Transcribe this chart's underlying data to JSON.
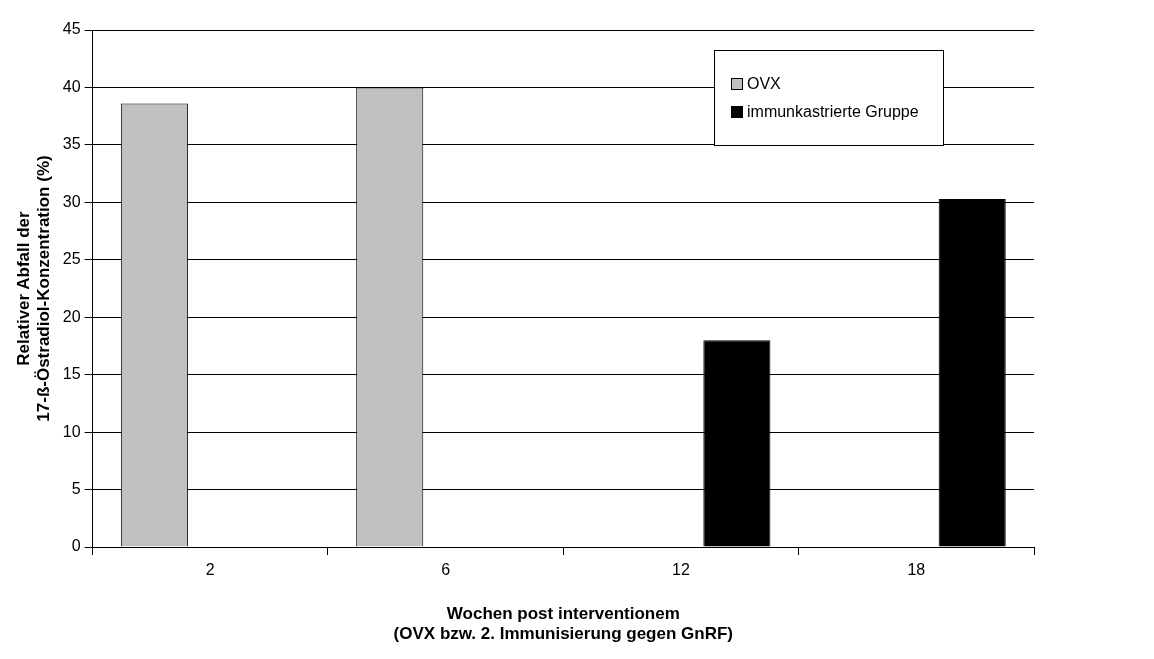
{
  "chart_data": {
    "type": "bar",
    "xlabel": "Wochen post interventionem\n(OVX bzw. 2. Immunisierung gegen GnRF)",
    "ylabel": "Relativer Abfall der\n17-ß-Östradiol-Konzentration (%)",
    "categories": [
      "2",
      "6",
      "12",
      "18"
    ],
    "series": [
      {
        "name": "OVX",
        "color": "#c0c0c0",
        "values": [
          38.6,
          40,
          null,
          null
        ]
      },
      {
        "name": "immunkastrierte Gruppe",
        "color": "#000000",
        "values": [
          null,
          null,
          18,
          30.3
        ]
      }
    ],
    "ylim": [
      0,
      45
    ],
    "yticks": [
      0,
      5,
      10,
      15,
      20,
      25,
      30,
      35,
      40,
      45
    ],
    "grid": "y",
    "legend": "top right"
  }
}
